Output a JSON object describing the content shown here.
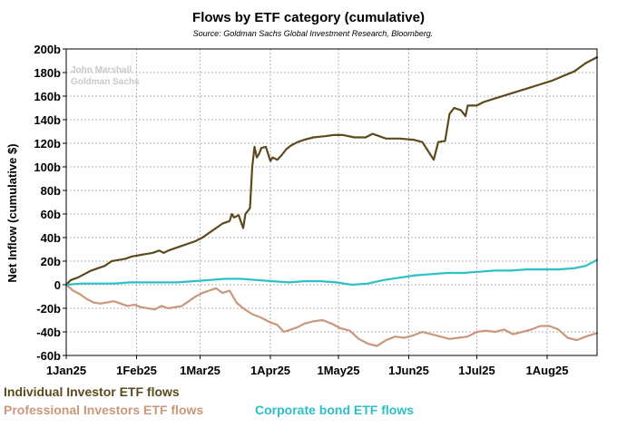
{
  "chart_data": {
    "type": "line",
    "title": "Flows by ETF category (cumulative)",
    "subtitle": "Source: Goldman Sachs Global Investment Research, Bloomberg.",
    "watermark": [
      "John Marshall",
      "Goldman Sachs"
    ],
    "xlabel": "",
    "ylabel": "Net Inflow (cumulative $)",
    "ylim": [
      -60,
      200
    ],
    "yticks": [
      -60,
      -40,
      -20,
      0,
      20,
      40,
      60,
      80,
      100,
      120,
      140,
      160,
      180,
      200
    ],
    "ytick_labels": [
      "-60b",
      "-40b",
      "-20b",
      "0",
      "20b",
      "40b",
      "60b",
      "80b",
      "100b",
      "120b",
      "140b",
      "160b",
      "180b",
      "200b"
    ],
    "xlim": [
      "2025-01-01",
      "2025-08-23"
    ],
    "xticks": [
      "2025-01-01",
      "2025-02-01",
      "2025-03-01",
      "2025-04-01",
      "2025-05-01",
      "2025-06-01",
      "2025-07-01",
      "2025-08-01"
    ],
    "xtick_labels": [
      "1Jan25",
      "1Feb25",
      "1Mar25",
      "1Apr25",
      "1May25",
      "1Jun25",
      "1Jul25",
      "1Aug25"
    ],
    "grid": true,
    "legend_placement": "bottom",
    "series": [
      {
        "name": "Individual Investor ETF flows",
        "color": "#5b4a1c",
        "points": [
          [
            "2025-01-01",
            0
          ],
          [
            "2025-01-03",
            4
          ],
          [
            "2025-01-06",
            6
          ],
          [
            "2025-01-09",
            9
          ],
          [
            "2025-01-12",
            12
          ],
          [
            "2025-01-15",
            14
          ],
          [
            "2025-01-18",
            16
          ],
          [
            "2025-01-21",
            20
          ],
          [
            "2025-01-24",
            21
          ],
          [
            "2025-01-27",
            22
          ],
          [
            "2025-01-30",
            24
          ],
          [
            "2025-02-02",
            25
          ],
          [
            "2025-02-05",
            26
          ],
          [
            "2025-02-08",
            27
          ],
          [
            "2025-02-11",
            29
          ],
          [
            "2025-02-13",
            27
          ],
          [
            "2025-02-15",
            29
          ],
          [
            "2025-02-18",
            31
          ],
          [
            "2025-02-21",
            33
          ],
          [
            "2025-02-24",
            35
          ],
          [
            "2025-02-27",
            37
          ],
          [
            "2025-03-02",
            40
          ],
          [
            "2025-03-05",
            44
          ],
          [
            "2025-03-08",
            48
          ],
          [
            "2025-03-11",
            52
          ],
          [
            "2025-03-14",
            54
          ],
          [
            "2025-03-15",
            60
          ],
          [
            "2025-03-16",
            57
          ],
          [
            "2025-03-18",
            59
          ],
          [
            "2025-03-20",
            48
          ],
          [
            "2025-03-21",
            60
          ],
          [
            "2025-03-23",
            65
          ],
          [
            "2025-03-24",
            100
          ],
          [
            "2025-03-25",
            117
          ],
          [
            "2025-03-26",
            108
          ],
          [
            "2025-03-27",
            111
          ],
          [
            "2025-03-28",
            116
          ],
          [
            "2025-03-30",
            117
          ],
          [
            "2025-04-01",
            105
          ],
          [
            "2025-04-02",
            108
          ],
          [
            "2025-04-04",
            106
          ],
          [
            "2025-04-06",
            110
          ],
          [
            "2025-04-08",
            115
          ],
          [
            "2025-04-10",
            118
          ],
          [
            "2025-04-13",
            121
          ],
          [
            "2025-04-16",
            123
          ],
          [
            "2025-04-20",
            125
          ],
          [
            "2025-04-25",
            126
          ],
          [
            "2025-04-29",
            127
          ],
          [
            "2025-05-03",
            127
          ],
          [
            "2025-05-08",
            125
          ],
          [
            "2025-05-13",
            125
          ],
          [
            "2025-05-16",
            128
          ],
          [
            "2025-05-19",
            126
          ],
          [
            "2025-05-22",
            124
          ],
          [
            "2025-05-28",
            124
          ],
          [
            "2025-06-03",
            123
          ],
          [
            "2025-06-07",
            121
          ],
          [
            "2025-06-10",
            112
          ],
          [
            "2025-06-12",
            106
          ],
          [
            "2025-06-14",
            121
          ],
          [
            "2025-06-17",
            122
          ],
          [
            "2025-06-19",
            145
          ],
          [
            "2025-06-21",
            150
          ],
          [
            "2025-06-24",
            148
          ],
          [
            "2025-06-26",
            143
          ],
          [
            "2025-06-27",
            152
          ],
          [
            "2025-07-01",
            152
          ],
          [
            "2025-07-04",
            155
          ],
          [
            "2025-07-09",
            158
          ],
          [
            "2025-07-14",
            161
          ],
          [
            "2025-07-19",
            164
          ],
          [
            "2025-07-24",
            167
          ],
          [
            "2025-07-29",
            170
          ],
          [
            "2025-08-03",
            173
          ],
          [
            "2025-08-08",
            177
          ],
          [
            "2025-08-13",
            181
          ],
          [
            "2025-08-18",
            188
          ],
          [
            "2025-08-23",
            193
          ]
        ]
      },
      {
        "name": "Professional Investors ETF flows",
        "color": "#c9977c",
        "points": [
          [
            "2025-01-01",
            0
          ],
          [
            "2025-01-04",
            -5
          ],
          [
            "2025-01-07",
            -8
          ],
          [
            "2025-01-10",
            -12
          ],
          [
            "2025-01-13",
            -15
          ],
          [
            "2025-01-16",
            -16
          ],
          [
            "2025-01-19",
            -15
          ],
          [
            "2025-01-22",
            -14
          ],
          [
            "2025-01-25",
            -16
          ],
          [
            "2025-01-28",
            -18
          ],
          [
            "2025-01-31",
            -17
          ],
          [
            "2025-02-03",
            -19
          ],
          [
            "2025-02-06",
            -20
          ],
          [
            "2025-02-09",
            -21
          ],
          [
            "2025-02-12",
            -18
          ],
          [
            "2025-02-15",
            -20
          ],
          [
            "2025-02-18",
            -19
          ],
          [
            "2025-02-21",
            -18
          ],
          [
            "2025-02-24",
            -14
          ],
          [
            "2025-02-27",
            -10
          ],
          [
            "2025-03-02",
            -7
          ],
          [
            "2025-03-05",
            -5
          ],
          [
            "2025-03-08",
            -3
          ],
          [
            "2025-03-11",
            -7
          ],
          [
            "2025-03-14",
            -5
          ],
          [
            "2025-03-17",
            -15
          ],
          [
            "2025-03-20",
            -20
          ],
          [
            "2025-03-24",
            -25
          ],
          [
            "2025-03-28",
            -28
          ],
          [
            "2025-04-01",
            -32
          ],
          [
            "2025-04-04",
            -34
          ],
          [
            "2025-04-07",
            -40
          ],
          [
            "2025-04-10",
            -38
          ],
          [
            "2025-04-13",
            -36
          ],
          [
            "2025-04-16",
            -33
          ],
          [
            "2025-04-20",
            -31
          ],
          [
            "2025-04-24",
            -30
          ],
          [
            "2025-04-28",
            -33
          ],
          [
            "2025-05-02",
            -37
          ],
          [
            "2025-05-06",
            -39
          ],
          [
            "2025-05-10",
            -46
          ],
          [
            "2025-05-14",
            -50
          ],
          [
            "2025-05-18",
            -52
          ],
          [
            "2025-05-22",
            -47
          ],
          [
            "2025-05-26",
            -44
          ],
          [
            "2025-05-30",
            -45
          ],
          [
            "2025-06-03",
            -43
          ],
          [
            "2025-06-07",
            -40
          ],
          [
            "2025-06-11",
            -42
          ],
          [
            "2025-06-15",
            -44
          ],
          [
            "2025-06-19",
            -46
          ],
          [
            "2025-06-23",
            -45
          ],
          [
            "2025-06-27",
            -44
          ],
          [
            "2025-07-01",
            -40
          ],
          [
            "2025-07-05",
            -39
          ],
          [
            "2025-07-09",
            -40
          ],
          [
            "2025-07-13",
            -38
          ],
          [
            "2025-07-17",
            -42
          ],
          [
            "2025-07-21",
            -40
          ],
          [
            "2025-07-25",
            -38
          ],
          [
            "2025-07-29",
            -35
          ],
          [
            "2025-08-02",
            -35
          ],
          [
            "2025-08-06",
            -38
          ],
          [
            "2025-08-10",
            -45
          ],
          [
            "2025-08-14",
            -47
          ],
          [
            "2025-08-18",
            -44
          ],
          [
            "2025-08-23",
            -41
          ]
        ]
      },
      {
        "name": "Corporate bond ETF flows",
        "color": "#2bbfc6",
        "points": [
          [
            "2025-01-01",
            0
          ],
          [
            "2025-01-08",
            1
          ],
          [
            "2025-01-15",
            1
          ],
          [
            "2025-01-22",
            1
          ],
          [
            "2025-01-29",
            2
          ],
          [
            "2025-02-05",
            2
          ],
          [
            "2025-02-12",
            2
          ],
          [
            "2025-02-19",
            2
          ],
          [
            "2025-02-26",
            3
          ],
          [
            "2025-03-05",
            4
          ],
          [
            "2025-03-12",
            5
          ],
          [
            "2025-03-19",
            5
          ],
          [
            "2025-03-26",
            4
          ],
          [
            "2025-04-02",
            3
          ],
          [
            "2025-04-09",
            2
          ],
          [
            "2025-04-16",
            3
          ],
          [
            "2025-04-23",
            3
          ],
          [
            "2025-04-30",
            2
          ],
          [
            "2025-05-07",
            0
          ],
          [
            "2025-05-14",
            1
          ],
          [
            "2025-05-21",
            4
          ],
          [
            "2025-05-28",
            6
          ],
          [
            "2025-06-04",
            8
          ],
          [
            "2025-06-11",
            9
          ],
          [
            "2025-06-18",
            10
          ],
          [
            "2025-06-25",
            10
          ],
          [
            "2025-07-02",
            11
          ],
          [
            "2025-07-09",
            12
          ],
          [
            "2025-07-16",
            12
          ],
          [
            "2025-07-23",
            13
          ],
          [
            "2025-07-30",
            13
          ],
          [
            "2025-08-06",
            13
          ],
          [
            "2025-08-13",
            14
          ],
          [
            "2025-08-18",
            16
          ],
          [
            "2025-08-23",
            21
          ]
        ]
      }
    ]
  }
}
